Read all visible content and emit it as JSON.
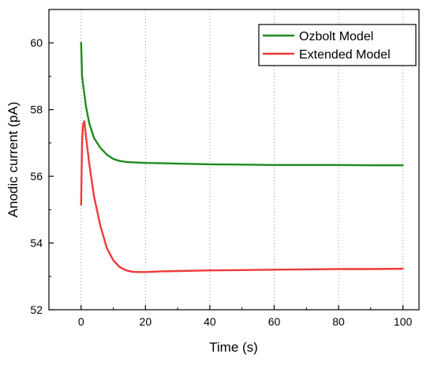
{
  "chart_data": {
    "type": "line",
    "title": "",
    "xlabel": "Time (s)",
    "ylabel": "Anodic current (pA)",
    "xlim": [
      -10,
      105
    ],
    "ylim": [
      52,
      61
    ],
    "xticks": [
      0,
      20,
      40,
      60,
      80,
      100
    ],
    "yticks": [
      52,
      54,
      56,
      58,
      60
    ],
    "grid": "vertical dotted at x ticks",
    "legend": "top-right",
    "series": [
      {
        "name": "Ozbolt Model",
        "color": "#1f8a1f",
        "x": [
          0,
          0.3,
          0.7,
          1.5,
          2.5,
          4,
          6,
          8,
          10,
          12,
          14,
          16,
          18,
          20,
          25,
          30,
          40,
          50,
          60,
          70,
          80,
          90,
          100
        ],
        "y": [
          60.0,
          59.0,
          58.7,
          58.1,
          57.6,
          57.15,
          56.85,
          56.65,
          56.52,
          56.46,
          56.43,
          56.42,
          56.41,
          56.4,
          56.39,
          56.38,
          56.36,
          56.35,
          56.34,
          56.34,
          56.34,
          56.33,
          56.33
        ]
      },
      {
        "name": "Extended Model",
        "color": "#ee3b3b",
        "x": [
          0,
          0.3,
          0.6,
          1.0,
          1.5,
          2.5,
          4,
          6,
          8,
          10,
          12,
          14,
          16,
          18,
          20,
          25,
          30,
          40,
          50,
          60,
          70,
          80,
          90,
          100
        ],
        "y": [
          55.15,
          57.0,
          57.55,
          57.65,
          57.2,
          56.4,
          55.4,
          54.5,
          53.85,
          53.48,
          53.28,
          53.18,
          53.14,
          53.13,
          53.13,
          53.15,
          53.16,
          53.18,
          53.19,
          53.2,
          53.21,
          53.22,
          53.22,
          53.23
        ]
      }
    ]
  }
}
